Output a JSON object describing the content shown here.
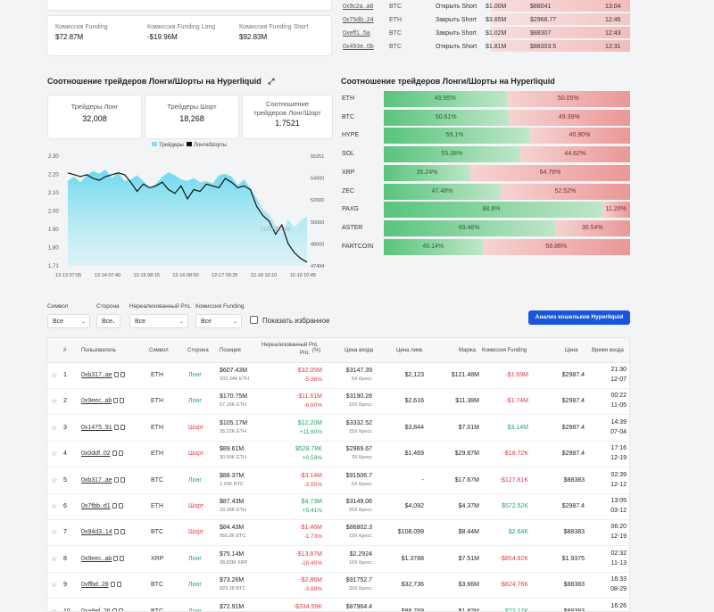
{
  "funding": {
    "items": [
      {
        "label": "Комиссия Funding",
        "value": "$72.87M"
      },
      {
        "label": "Комиссия Funding Long",
        "value": "-$19.96M"
      },
      {
        "label": "Комиссия Funding Short",
        "value": "$92.83M"
      }
    ]
  },
  "trades": [
    {
      "addr": "0x9c2a..a8",
      "sym": "BTC",
      "action": "Открыть Short",
      "pos": "$1.00M",
      "price": "$88041",
      "time": "13:04"
    },
    {
      "addr": "0x75db..24",
      "sym": "ETH",
      "action": "Закрыть Short",
      "pos": "$3.85M",
      "price": "$2968.77",
      "time": "12:46"
    },
    {
      "addr": "0xeff1..5a",
      "sym": "BTC",
      "action": "Закрыть Short",
      "pos": "$1.02M",
      "price": "$88307",
      "time": "12:43"
    },
    {
      "addr": "0x493e..0b",
      "sym": "BTC",
      "action": "Открыть Short",
      "pos": "$1.81M",
      "price": "$88303.5",
      "time": "12:31"
    }
  ],
  "ratio_section": {
    "title_left": "Соотношение трейдеров Лонги/Шорты на Hyperliquid",
    "title_right": "Соотношение трейдеров Лонги/Шорты на Hyperliquid",
    "cards": [
      {
        "label": "Трейдеры Лонг",
        "value": "32,008"
      },
      {
        "label": "Трейдеры Шорт",
        "value": "18,268"
      },
      {
        "label": "Соотношение трейдеров Лонг/Шорт",
        "value": "1.7521"
      }
    ]
  },
  "chart_data": {
    "type": "area",
    "legend": [
      "Трейдеры",
      "Лонги/Шорты"
    ],
    "legend_position": "top",
    "x_ticks": [
      "12-13 07:05",
      "12-14 07:40",
      "12-15 08:15",
      "12-16 08:50",
      "12-17 09:25",
      "12-18 10:10",
      "12-19 10:45"
    ],
    "y_left_ticks": [
      "2.30",
      "2.20",
      "2.10",
      "2.00",
      "1.90",
      "1.80",
      "1.71"
    ],
    "y_right_ticks": [
      "55251",
      "54000",
      "52000",
      "50000",
      "48000",
      "47494"
    ],
    "watermark": "coinglass",
    "ylim_left": [
      1.71,
      2.3
    ],
    "ylim_right": [
      47494,
      55251
    ],
    "series": [
      {
        "name": "Трейдеры",
        "color": "#7fe0ef",
        "axis": "right",
        "values": [
          53500,
          53800,
          53400,
          53900,
          54200,
          54000,
          54300,
          53700,
          54100,
          53500,
          53600,
          53900,
          53500,
          53000,
          53300,
          53800,
          54100,
          53900,
          53600,
          53500,
          53700,
          53400,
          53500,
          53300,
          53900,
          54000,
          53800,
          53200,
          53600,
          53000,
          52300,
          51500,
          51100,
          50400,
          49800,
          50800,
          50200,
          50700,
          51000
        ]
      },
      {
        "name": "Лонги/Шорты",
        "color": "#111111",
        "axis": "left",
        "values": [
          2.21,
          2.2,
          2.19,
          2.2,
          2.18,
          2.17,
          2.19,
          2.2,
          2.21,
          2.2,
          2.16,
          2.11,
          2.15,
          2.13,
          2.14,
          2.16,
          2.12,
          2.1,
          2.14,
          2.07,
          2.12,
          2.11,
          2.15,
          2.14,
          2.13,
          2.18,
          2.16,
          2.13,
          2.14,
          2.12,
          2.03,
          1.98,
          1.95,
          1.88,
          1.93,
          1.83,
          1.78,
          1.75,
          1.73
        ]
      }
    ]
  },
  "long_short_bars": [
    {
      "sym": "ETH",
      "long": 49.95,
      "short": 50.05,
      "long_label": "49.95%",
      "short_label": "50.05%"
    },
    {
      "sym": "BTC",
      "long": 50.61,
      "short": 49.39,
      "long_label": "50.61%",
      "short_label": "49.39%"
    },
    {
      "sym": "HYPE",
      "long": 59.1,
      "short": 40.9,
      "long_label": "59.1%",
      "short_label": "40.90%"
    },
    {
      "sym": "SOL",
      "long": 55.38,
      "short": 44.62,
      "long_label": "55.38%",
      "short_label": "44.62%"
    },
    {
      "sym": "XRP",
      "long": 35.24,
      "short": 64.76,
      "long_label": "35.24%",
      "short_label": "64.76%"
    },
    {
      "sym": "ZEC",
      "long": 47.48,
      "short": 52.52,
      "long_label": "47.48%",
      "short_label": "52.52%"
    },
    {
      "sym": "PAXG",
      "long": 88.8,
      "short": 11.2,
      "long_label": "88.8%",
      "short_label": "11.20%"
    },
    {
      "sym": "ASTER",
      "long": 69.46,
      "short": 30.54,
      "long_label": "69.46%",
      "short_label": "30.54%"
    },
    {
      "sym": "FARTCOIN",
      "long": 40.14,
      "short": 59.86,
      "long_label": "40.14%",
      "short_label": "59.86%"
    }
  ],
  "filters": {
    "symbol": {
      "label": "Символ",
      "value": "Все"
    },
    "side": {
      "label": "Сторона",
      "value": "Все"
    },
    "pnl": {
      "label": "Нереализованный PnL",
      "value": "Все"
    },
    "funding": {
      "label": "Комиссия Funding",
      "value": "Все"
    },
    "favorites_label": "Показать избранное",
    "analyze_button": "Анализ кошельков Hyperliquid"
  },
  "table": {
    "headers": {
      "num": "#",
      "user": "Пользователь",
      "symbol": "Символ",
      "side": "Сторона",
      "position": "Позиция",
      "pnl": "Нереализованный PnL",
      "pct": "(%)",
      "entry": "Цена входа",
      "liq": "Цена ликв.",
      "margin": "Маржа",
      "funding": "Комиссия Funding",
      "price": "Цена",
      "time": "Время входа"
    },
    "rows": [
      {
        "n": "1",
        "user": "0xb317..ae",
        "sym": "ETH",
        "side": "Лонг",
        "long": true,
        "pos": "$607.43M",
        "pos_sub": "203.34K ETH",
        "pnl": "-$32.05M",
        "pnl_pos": false,
        "pct": "-5.36%",
        "entry": "$3147.39",
        "entry_sub": "5X Кросс",
        "liq": "$2,123",
        "margin": "$121.48M",
        "fund": "-$1.69M",
        "fund_pos": false,
        "price": "$2987.4",
        "time": "21:30",
        "date": "12-07"
      },
      {
        "n": "2",
        "user": "0x9eec..ab",
        "sym": "ETH",
        "side": "Лонг",
        "long": true,
        "pos": "$170.75M",
        "pos_sub": "57.16K ETH",
        "pnl": "-$11.61M",
        "pnl_pos": false,
        "pct": "-6.80%",
        "entry": "$3190.28",
        "entry_sub": "15X Кросс",
        "liq": "$2,616",
        "margin": "$11.38M",
        "fund": "-$1.74M",
        "fund_pos": false,
        "price": "$2987.4",
        "time": "00:22",
        "date": "11-05"
      },
      {
        "n": "3",
        "user": "0x1475..91",
        "sym": "ETH",
        "side": "Шорт",
        "long": false,
        "pos": "$105.17M",
        "pos_sub": "35.22K ETH",
        "pnl": "$12.20M",
        "pnl_pos": true,
        "pct": "+11.60%",
        "entry": "$3332.52",
        "entry_sub": "15X Кросс",
        "liq": "$3,844",
        "margin": "$7.01M",
        "fund": "$3.14M",
        "fund_pos": true,
        "price": "$2987.4",
        "time": "14:39",
        "date": "07-04"
      },
      {
        "n": "4",
        "user": "0x0ddf..02",
        "sym": "ETH",
        "side": "Шорт",
        "long": false,
        "pos": "$89.61M",
        "pos_sub": "30.00K ETH",
        "pnl": "$528.78K",
        "pnl_pos": true,
        "pct": "+0.59%",
        "entry": "$2969.67",
        "entry_sub": "3X Кросс",
        "liq": "$1,469",
        "margin": "$29.87M",
        "fund": "-$18.72K",
        "fund_pos": false,
        "price": "$2987.4",
        "time": "17:16",
        "date": "12-19"
      },
      {
        "n": "5",
        "user": "0xb317..ae",
        "sym": "BTC",
        "side": "Лонг",
        "long": true,
        "pos": "$88.37M",
        "pos_sub": "1.00K BTC",
        "pnl": "-$3.14M",
        "pnl_pos": false,
        "pct": "-3.55%",
        "entry": "$91506.7",
        "entry_sub": "5X Кросс",
        "liq": "-",
        "margin": "$17.67M",
        "fund": "-$127.81K",
        "fund_pos": false,
        "price": "$88383",
        "time": "02:39",
        "date": "12-12"
      },
      {
        "n": "6",
        "user": "0x7fbb..d1",
        "sym": "ETH",
        "side": "Шорт",
        "long": false,
        "pos": "$87.43M",
        "pos_sub": "29.26K ETH",
        "pnl": "$4.73M",
        "pnl_pos": true,
        "pct": "+5.41%",
        "entry": "$3149.06",
        "entry_sub": "20X Кросс",
        "liq": "$4,092",
        "margin": "$4.37M",
        "fund": "$572.52K",
        "fund_pos": true,
        "price": "$2987.4",
        "time": "13:05",
        "date": "03-12"
      },
      {
        "n": "7",
        "user": "0x94d3..14",
        "sym": "BTC",
        "side": "Шорт",
        "long": false,
        "pos": "$84.43M",
        "pos_sub": "955.86 BTC",
        "pnl": "-$1.46M",
        "pnl_pos": false,
        "pct": "-1.73%",
        "entry": "$86802.3",
        "entry_sub": "10X Кросс",
        "liq": "$108,099",
        "margin": "$8.44M",
        "fund": "$2.64K",
        "fund_pos": true,
        "price": "$88383",
        "time": "06:20",
        "date": "12-19"
      },
      {
        "n": "8",
        "user": "0x9eec..ab",
        "sym": "XRP",
        "side": "Лонг",
        "long": true,
        "pos": "$75.14M",
        "pos_sub": "38.82M XRP",
        "pnl": "-$13.87M",
        "pnl_pos": false,
        "pct": "-18.45%",
        "entry": "$2.2924",
        "entry_sub": "10X Кросс",
        "liq": "$1.3788",
        "margin": "$7.51M",
        "fund": "-$854.82K",
        "fund_pos": false,
        "price": "$1.9375",
        "time": "02:32",
        "date": "11-13"
      },
      {
        "n": "9",
        "user": "0xffbd..28",
        "sym": "BTC",
        "side": "Лонг",
        "long": true,
        "pos": "$73.26M",
        "pos_sub": "829.28 BTC",
        "pnl": "-$2.86M",
        "pnl_pos": false,
        "pct": "-3.88%",
        "entry": "$91752.7",
        "entry_sub": "20X Кросс",
        "liq": "$32,736",
        "margin": "$3.66M",
        "fund": "-$824.76K",
        "fund_pos": false,
        "price": "$88383",
        "time": "16:33",
        "date": "08-29"
      },
      {
        "n": "10",
        "user": "0xa8ef..26",
        "sym": "BTC",
        "side": "Лонг",
        "long": true,
        "pos": "$72.91M",
        "pos_sub": "825.08 BTC",
        "pnl": "-$334.59K",
        "pnl_pos": false,
        "pct": "-0.46%",
        "entry": "$87964.4",
        "entry_sub": "40X Кросс",
        "liq": "$88,769",
        "margin": "$1.82M",
        "fund": "$72.17K",
        "fund_pos": true,
        "price": "$88383",
        "time": "16:26",
        "date": "12-08"
      }
    ]
  }
}
